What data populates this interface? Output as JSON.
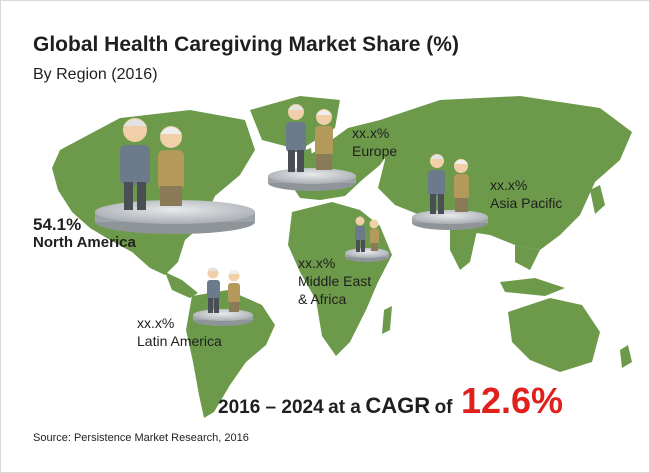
{
  "title": "Global Health Caregiving Market Share (%)",
  "subtitle": "By Region (2016)",
  "chart_data": {
    "type": "map",
    "title": "Global Health Caregiving Market Share (%)",
    "subtitle": "By Region (2016)",
    "regions": [
      {
        "name": "North America",
        "share": "54.1%"
      },
      {
        "name": "Europe",
        "share": "xx.x%"
      },
      {
        "name": "Asia Pacific",
        "share": "xx.x%"
      },
      {
        "name": "Middle East & Africa",
        "share": "xx.x%"
      },
      {
        "name": "Latin America",
        "share": "xx.x%"
      }
    ]
  },
  "labels": {
    "north_america": {
      "value": "54.1%",
      "name": "North America"
    },
    "europe": {
      "value": "xx.x%",
      "name": "Europe"
    },
    "asia_pacific": {
      "value": "xx.x%",
      "name": "Asia Pacific"
    },
    "mea": {
      "value": "xx.x%",
      "name_line1": "Middle East",
      "name_line2": "& Africa"
    },
    "latin_america": {
      "value": "xx.x%",
      "name": "Latin America"
    }
  },
  "cagr": {
    "years": "2016 – 2024",
    "mid": "at a",
    "word": "CAGR",
    "of": "of",
    "value": "12.6%"
  },
  "source": "Source: Persistence Market Research, 2016",
  "colors": {
    "map": "#6c9a4a",
    "accent": "#e0201c",
    "pedestal": "#b9bdc2",
    "coat_man": "#6b7b8c",
    "coat_woman": "#b49a5a"
  }
}
